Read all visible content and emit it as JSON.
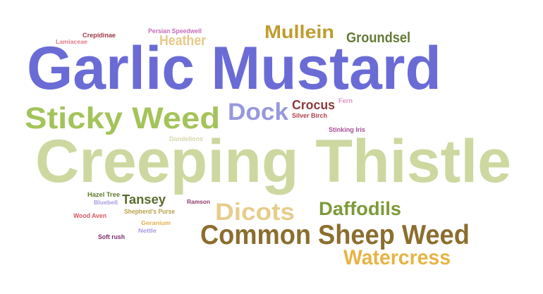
{
  "words": [
    {
      "text": "Creeping Thistle",
      "color": "#cdd8a0"
    },
    {
      "text": "Garlic Mustard",
      "color": "#6b6bd6"
    },
    {
      "text": "Common Sheep Weed",
      "color": "#8b6e2e"
    },
    {
      "text": "Sticky Weed",
      "color": "#a4c35a"
    },
    {
      "text": "Dicots",
      "color": "#e6cd8c"
    },
    {
      "text": "Watercress",
      "color": "#e6b445"
    },
    {
      "text": "Dock",
      "color": "#9898de"
    },
    {
      "text": "Daffodils",
      "color": "#7c9a3a"
    },
    {
      "text": "Mullein",
      "color": "#bf9c2f"
    },
    {
      "text": "Groundsel",
      "color": "#647a37"
    },
    {
      "text": "Heather",
      "color": "#e7c98b"
    },
    {
      "text": "Crocus",
      "color": "#8d3a3a"
    },
    {
      "text": "Tansey",
      "color": "#5b6b2c"
    },
    {
      "text": "Persian Speedwell",
      "color": "#c96ab8"
    },
    {
      "text": "Crepidinae",
      "color": "#a03a48"
    },
    {
      "text": "Lamiaceae",
      "color": "#e07a84"
    },
    {
      "text": "Fern",
      "color": "#de92c7"
    },
    {
      "text": "Silver Birch",
      "color": "#b2404c"
    },
    {
      "text": "Stinking Iris",
      "color": "#a64e97"
    },
    {
      "text": "Dandelions",
      "color": "#d7d6ab"
    },
    {
      "text": "Hazel Tree",
      "color": "#5f7a30"
    },
    {
      "text": "Bluebell",
      "color": "#a89be0"
    },
    {
      "text": "Ramson",
      "color": "#8b3a6a"
    },
    {
      "text": "Shepherd's Purse",
      "color": "#b8a048"
    },
    {
      "text": "Wood Aven",
      "color": "#d65863"
    },
    {
      "text": "Geranium",
      "color": "#e0b24d"
    },
    {
      "text": "Nettle",
      "color": "#a89be0"
    },
    {
      "text": "Soft rush",
      "color": "#7b2d6a"
    }
  ]
}
